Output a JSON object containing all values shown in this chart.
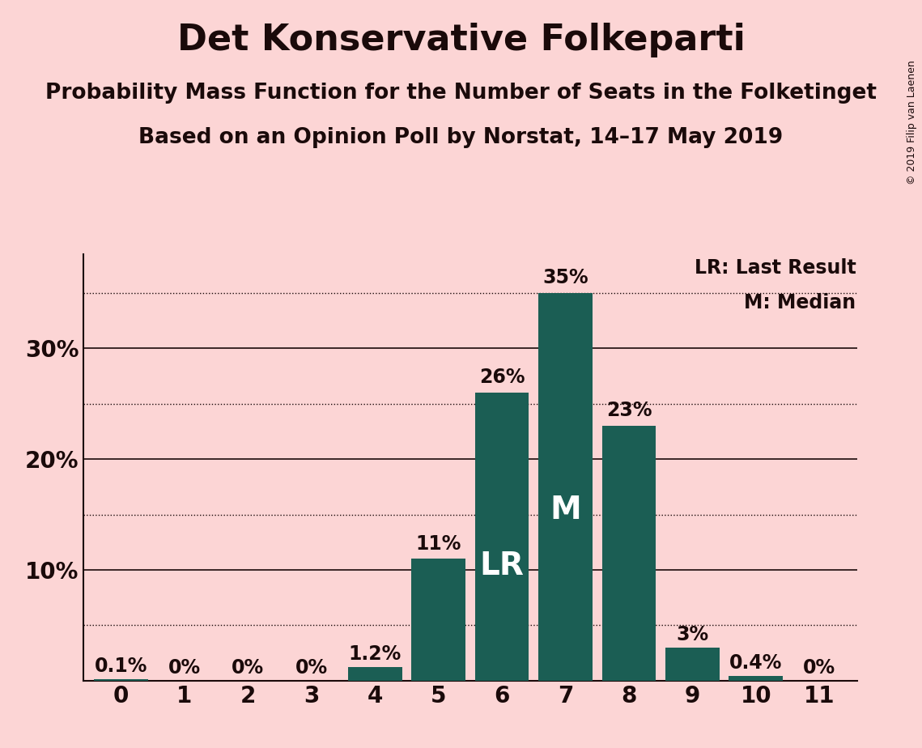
{
  "title": "Det Konservative Folkeparti",
  "subtitle1": "Probability Mass Function for the Number of Seats in the Folketinget",
  "subtitle2": "Based on an Opinion Poll by Norstat, 14–17 May 2019",
  "copyright": "© 2019 Filip van Laenen",
  "seats": [
    0,
    1,
    2,
    3,
    4,
    5,
    6,
    7,
    8,
    9,
    10,
    11
  ],
  "probabilities": [
    0.001,
    0.0,
    0.0,
    0.0,
    0.012,
    0.11,
    0.26,
    0.35,
    0.23,
    0.03,
    0.004,
    0.0
  ],
  "labels": [
    "0.1%",
    "0%",
    "0%",
    "0%",
    "1.2%",
    "11%",
    "26%",
    "35%",
    "23%",
    "3%",
    "0.4%",
    "0%"
  ],
  "bar_color": "#1b5e54",
  "background_color": "#fcd5d5",
  "text_color": "#1a0a0a",
  "lr_seat": 6,
  "median_seat": 7,
  "lr_label": "LR",
  "median_label": "M",
  "legend_lr": "LR: Last Result",
  "legend_m": "M: Median",
  "yticks": [
    0.0,
    0.1,
    0.2,
    0.3
  ],
  "ytick_labels": [
    "",
    "10%",
    "20%",
    "30%"
  ],
  "dotted_lines": [
    0.05,
    0.15,
    0.25,
    0.35
  ],
  "solid_lines": [
    0.1,
    0.2,
    0.3
  ],
  "ylim": [
    0,
    0.385
  ],
  "title_fontsize": 32,
  "subtitle_fontsize": 19,
  "legend_fontsize": 17,
  "tick_fontsize": 20,
  "bar_label_fontsize": 17,
  "inbar_label_fontsize": 28,
  "copyright_fontsize": 9
}
